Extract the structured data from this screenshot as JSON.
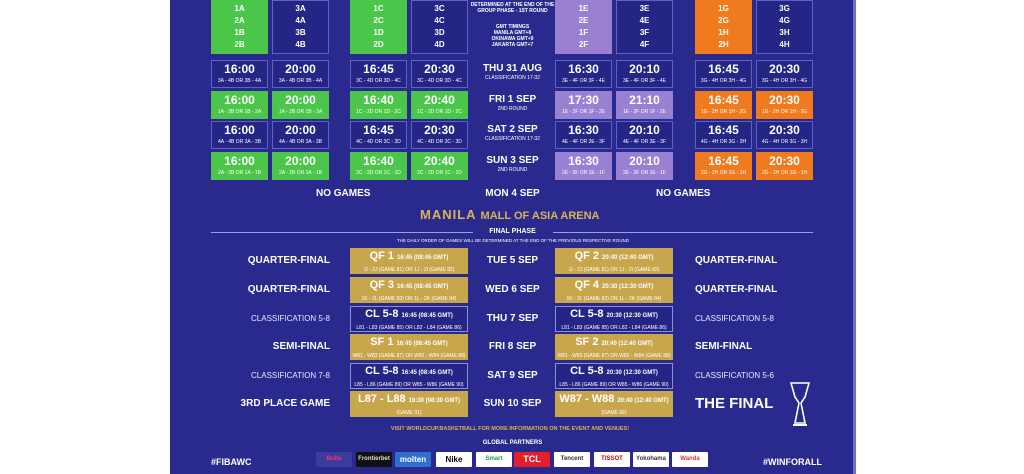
{
  "colors": {
    "panel": "#2a2a8e",
    "green": "#4cc64a",
    "purple": "#9a80d2",
    "orange": "#f07a1e",
    "gold": "#c8a64c"
  },
  "groups": [
    {
      "teams": [
        "1A",
        "2A",
        "1B",
        "2B"
      ],
      "style": "green"
    },
    {
      "teams": [
        "3A",
        "4A",
        "3B",
        "4B"
      ],
      "style": "dark"
    },
    {
      "teams": [
        "1C",
        "2C",
        "1D",
        "2D"
      ],
      "style": "green"
    },
    {
      "teams": [
        "3C",
        "4C",
        "3D",
        "4D"
      ],
      "style": "dark"
    },
    {
      "teams": [
        "1E",
        "2E",
        "1F",
        "2F"
      ],
      "style": "purple"
    },
    {
      "teams": [
        "3E",
        "4E",
        "3F",
        "4F"
      ],
      "style": "dark"
    },
    {
      "teams": [
        "1G",
        "2G",
        "1H",
        "2H"
      ],
      "style": "orange"
    },
    {
      "teams": [
        "3G",
        "4G",
        "3H",
        "4H"
      ],
      "style": "dark"
    }
  ],
  "header_note": [
    "DETERMINED AT THE END OF THE",
    "GROUP PHASE - 1ST ROUND"
  ],
  "timing_note": [
    "GMT TIMINGS",
    "MANILA GMT+8",
    "OKINAWA GMT+9",
    "JAKARTA GMT+7"
  ],
  "second_round": [
    {
      "date": "THU 31 AUG",
      "sub": "CLASSIFICATION 17-32",
      "style": "dark",
      "cols": [
        [
          "16:00",
          "3A - 4B OR 3B - 4A"
        ],
        [
          "20:00",
          "3A - 4B OR 3B - 4A"
        ],
        [
          "16:45",
          "3C - 4D OR 3D - 4C"
        ],
        [
          "20:30",
          "3C - 4D OR 3D - 4C"
        ],
        [
          "16:30",
          "3E - 4F OR 3F - 4E"
        ],
        [
          "20:10",
          "3E - 4F OR 3F - 4E"
        ],
        [
          "16:45",
          "3G - 4H OR 3H - 4G"
        ],
        [
          "20:30",
          "3G - 4H OR 3H - 4G"
        ]
      ]
    },
    {
      "date": "FRI 1 SEP",
      "sub": "2ND ROUND",
      "style": "color",
      "cols": [
        [
          "16:00",
          "1A - 2B OR 1B - 2A"
        ],
        [
          "20:00",
          "1A - 2B OR 1B - 2A"
        ],
        [
          "16:40",
          "1C - 2D OR 1D - 2C"
        ],
        [
          "20:40",
          "1C - 2D OR 1D - 2C"
        ],
        [
          "17:30",
          "1E - 2F OR 1F - 2E"
        ],
        [
          "21:10",
          "1E - 2F OR 1F - 2E"
        ],
        [
          "16:45",
          "1G - 2H OR 1H - 2G"
        ],
        [
          "20:30",
          "1G - 2H OR 1H - 2G"
        ]
      ]
    },
    {
      "date": "SAT 2 SEP",
      "sub": "CLASSIFICATION 17-32",
      "style": "dark",
      "cols": [
        [
          "16:00",
          "4A - 4B OR 3A - 3B"
        ],
        [
          "20:00",
          "4A - 4B OR 3A - 3B"
        ],
        [
          "16:45",
          "4C - 4D OR 3C - 3D"
        ],
        [
          "20:30",
          "4C - 4D OR 3C - 3D"
        ],
        [
          "16:30",
          "4E - 4F OR 3E - 3F"
        ],
        [
          "20:10",
          "4E - 4F OR 3E - 3F"
        ],
        [
          "16:45",
          "4G - 4H OR 3G - 3H"
        ],
        [
          "20:30",
          "4G - 4H OR 3G - 3H"
        ]
      ]
    },
    {
      "date": "SUN 3 SEP",
      "sub": "2ND ROUND",
      "style": "color",
      "cols": [
        [
          "16:00",
          "2A - 2B OR 1A - 1B"
        ],
        [
          "20:00",
          "2A - 2B OR 1A - 1B"
        ],
        [
          "16:40",
          "2C - 2D OR 1C - 1D"
        ],
        [
          "20:40",
          "2C - 2D OR 1C - 1D"
        ],
        [
          "16:30",
          "2E - 2F OR 1E - 1F"
        ],
        [
          "20:10",
          "2E - 2F OR 1E - 1F"
        ],
        [
          "16:45",
          "2G - 2H OR 1G - 1H"
        ],
        [
          "20:30",
          "2G - 2H OR 1G - 1H"
        ]
      ]
    }
  ],
  "rest_day": {
    "date": "MON 4 SEP",
    "left": "NO GAMES",
    "right": "NO GAMES"
  },
  "venue": {
    "city": "MANILA",
    "arena": "MALL OF ASIA ARENA"
  },
  "final_phase": {
    "title": "FINAL PHASE",
    "note": "THE DAILY ORDER OF GAMES WILL BE DETERMINED AT THE END OF THE PREVIOUS RESPECTIVE ROUND"
  },
  "final_rows": [
    {
      "date": "TUE 5 SEP",
      "left_label": "QUARTER-FINAL",
      "left": {
        "title": "QF 1",
        "time": "16:45 (08:45 GMT)",
        "match": "1I - 2J (GAME 81) OR 1J - 2I (GAME 82)",
        "style": "gold"
      },
      "right": {
        "title": "QF 2",
        "time": "20:40 (12:40 GMT)",
        "match": "1I - 2J (GAME 81) OR 1J - 2I (GAME 82)",
        "style": "gold"
      },
      "right_label": "QUARTER-FINAL",
      "major": true
    },
    {
      "date": "WED 6 SEP",
      "left_label": "QUARTER-FINAL",
      "left": {
        "title": "QF 3",
        "time": "16:45 (08:45 GMT)",
        "match": "1K - 2L (GAME 83) OR 1L - 2K (GAME 84)",
        "style": "gold"
      },
      "right": {
        "title": "QF 4",
        "time": "20:30 (12:30 GMT)",
        "match": "1K - 2L (GAME 83) OR 1L - 2K (GAME 84)",
        "style": "gold"
      },
      "right_label": "QUARTER-FINAL",
      "major": true
    },
    {
      "date": "THU 7 SEP",
      "left_label": "CLASSIFICATION 5-8",
      "left": {
        "title": "CL 5-8",
        "time": "16:45 (08:45 GMT)",
        "match": "L81 - L83 (GAME 85) OR L82 - L84 (GAME 86)",
        "style": "dark"
      },
      "right": {
        "title": "CL 5-8",
        "time": "20:30 (12:30 GMT)",
        "match": "L81 - L83 (GAME 85) OR L82 - L84 (GAME 86)",
        "style": "dark"
      },
      "right_label": "CLASSIFICATION 5-8",
      "major": false
    },
    {
      "date": "FRI 8 SEP",
      "left_label": "SEMI-FINAL",
      "left": {
        "title": "SF 1",
        "time": "16:45 (08:45 GMT)",
        "match": "W81 - W83 (GAME 87) OR W82 - W84 (GAME 88)",
        "style": "gold"
      },
      "right": {
        "title": "SF 2",
        "time": "20:40 (12:40 GMT)",
        "match": "W81 - W83 (GAME 87) OR W82 - W84 (GAME 88)",
        "style": "gold"
      },
      "right_label": "SEMI-FINAL",
      "major": true
    },
    {
      "date": "SAT 9 SEP",
      "left_label": "CLASSIFICATION 7-8",
      "left": {
        "title": "CL 5-8",
        "time": "16:45 (08:45 GMT)",
        "match": "L85 - L86 (GAME 89) OR W85 - W86 (GAME 90)",
        "style": "dark"
      },
      "right": {
        "title": "CL 5-8",
        "time": "20:30 (12:30 GMT)",
        "match": "L85 - L86 (GAME 89) OR W85 - W86 (GAME 90)",
        "style": "dark"
      },
      "right_label": "CLASSIFICATION 5-6",
      "major": false
    },
    {
      "date": "SUN 10 SEP",
      "left_label": "3RD PLACE GAME",
      "left": {
        "title": "L87 - L88",
        "time": "16:30 (08:30 GMT)",
        "match": "(GAME 91)",
        "style": "gold"
      },
      "right": {
        "title": "W87 - W88",
        "time": "20:40 (12:40 GMT)",
        "match": "(GAME 92)",
        "style": "gold"
      },
      "right_label": "THE FINAL",
      "major": true
    }
  ],
  "footer": {
    "visit": "VISIT WORLDCUP.BASKETBALL FOR MORE INFORMATION ON THE EVENT AND VENUES!",
    "partners_title": "GLOBAL PARTNERS",
    "partners": [
      "Bulls",
      "Frontierbet",
      "molten",
      "Nike",
      "Smart",
      "TCL",
      "Tencent",
      "TISSOT",
      "Yokohama",
      "Wanda"
    ],
    "hashtag_left": "#FIBAWC",
    "hashtag_right": "#WINFORALL"
  }
}
